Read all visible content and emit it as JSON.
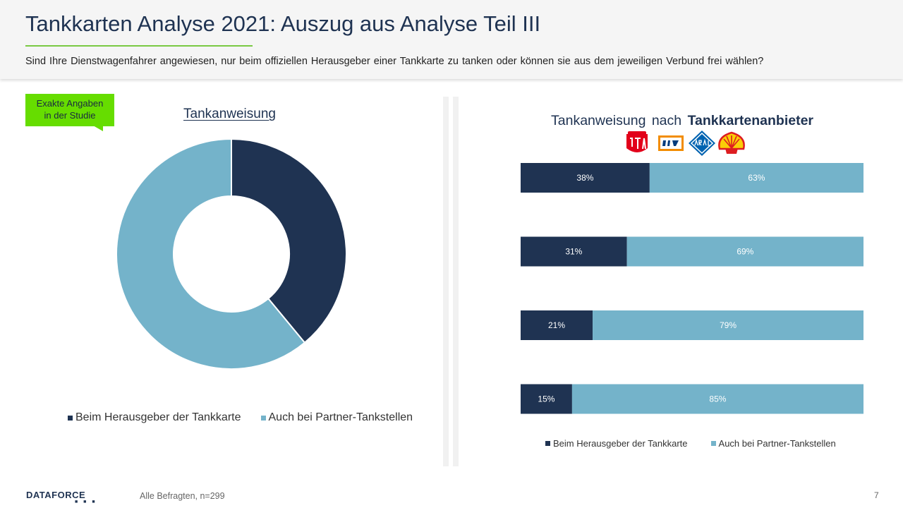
{
  "header": {
    "title": "Tankkarten Analyse 2021: Auszug aus Analyse Teil III",
    "subtitle": "Sind Ihre Dienstwagenfahrer angewiesen, nur beim offiziellen Herausgeber einer Tankkarte zu tanken oder können sie aus dem jeweiligen Verbund frei wählen?"
  },
  "callout": {
    "line1": "Exakte Angaben",
    "line2": "in der Studie"
  },
  "left_chart": {
    "title": "Tankanweisung",
    "legend": [
      "Beim Herausgeber der Tankkarte",
      "Auch bei Partner-Tankstellen"
    ]
  },
  "right_chart": {
    "title_prefix": "Tankanweisung nach",
    "title_bold": "Tankkartenanbieter",
    "logos": [
      "UTA",
      "DKV",
      "ARAL",
      "Shell"
    ],
    "legend": [
      "Beim Herausgeber der Tankkarte",
      "Auch bei Partner-Tankstellen"
    ]
  },
  "colors": {
    "dark": "#1f3352",
    "light": "#74b3ca",
    "accent": "#7ac943",
    "callout": "#66dd00"
  },
  "chart_data": [
    {
      "type": "pie",
      "title": "Tankanweisung",
      "labels": [
        "Beim Herausgeber der Tankkarte",
        "Auch bei Partner-Tankstellen"
      ],
      "values": [
        39,
        61
      ],
      "donut": true
    },
    {
      "type": "bar",
      "orientation": "horizontal",
      "stacked": true,
      "title": "Tankanweisung nach Tankkartenanbieter",
      "categories": [
        "UTA",
        "DKV",
        "ARAL",
        "Shell"
      ],
      "series": [
        {
          "name": "Beim Herausgeber der Tankkarte",
          "values": [
            38,
            31,
            21,
            15
          ],
          "labels": [
            "38%",
            "31%",
            "21%",
            "15%"
          ]
        },
        {
          "name": "Auch bei Partner-Tankstellen",
          "values": [
            63,
            69,
            79,
            85
          ],
          "labels": [
            "63%",
            "69%",
            "79%",
            "85%"
          ]
        }
      ]
    }
  ],
  "footer": {
    "brand": "DATAFORCE",
    "note": "Alle Befragten, n=299",
    "page": "7"
  }
}
